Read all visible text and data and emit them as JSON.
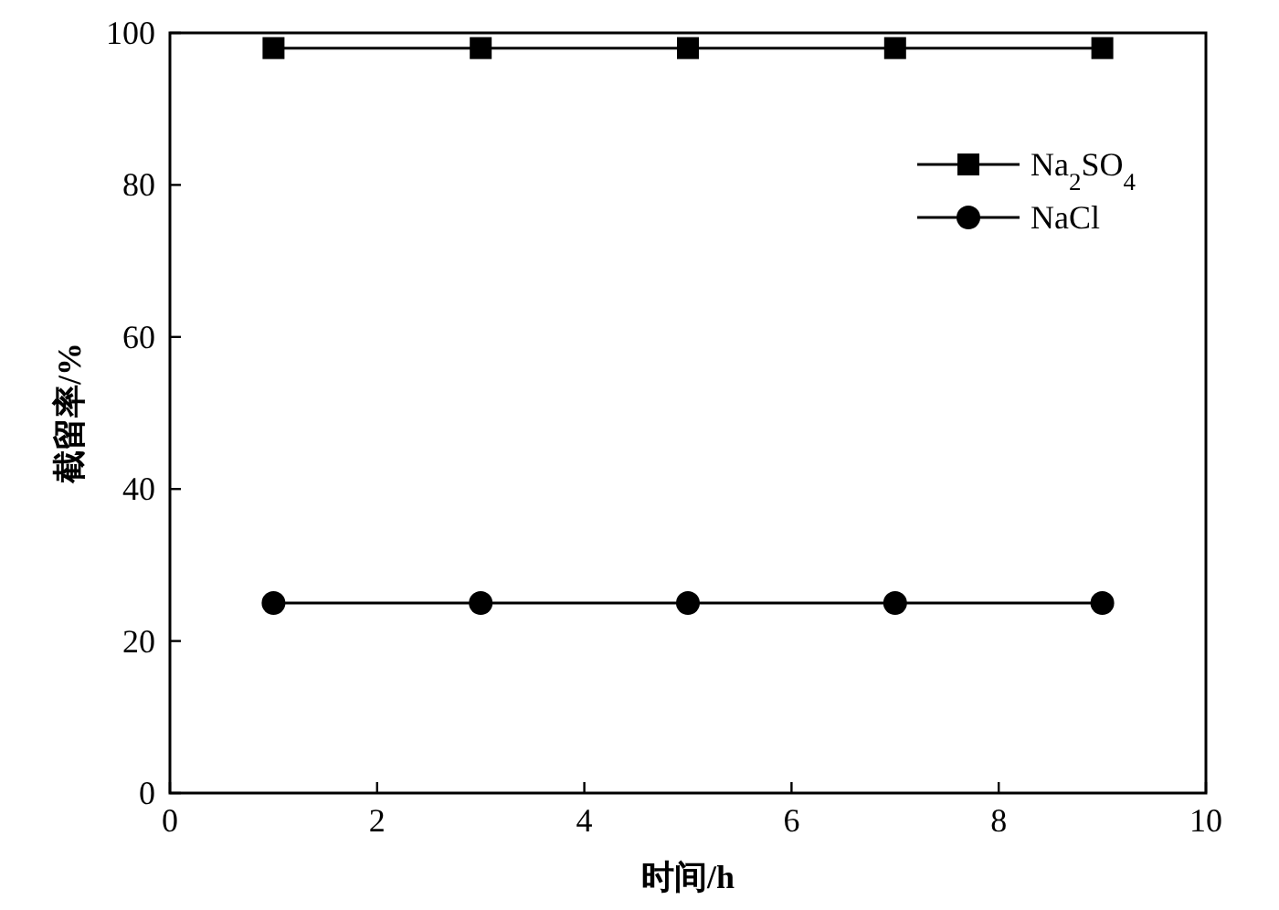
{
  "chart_data": {
    "type": "line",
    "xlabel": "时间/h",
    "ylabel": "截留率/%",
    "x": [
      1,
      3,
      5,
      7,
      9
    ],
    "series": [
      {
        "name": "Na$_{2}$SO$_{4}$",
        "color": "#000000",
        "marker": "square",
        "values": [
          98,
          98,
          98,
          98,
          98
        ]
      },
      {
        "name": "NaCl",
        "color": "#000000",
        "marker": "circle",
        "values": [
          25,
          25,
          25,
          25,
          25
        ]
      }
    ],
    "xlim": [
      0,
      10
    ],
    "xticks": [
      0,
      2,
      4,
      6,
      8,
      10
    ],
    "ylim": [
      0,
      100
    ],
    "yticks": [
      0,
      20,
      40,
      60,
      80,
      100
    ],
    "grid": false,
    "legend": "top right",
    "line_style": "solid"
  }
}
